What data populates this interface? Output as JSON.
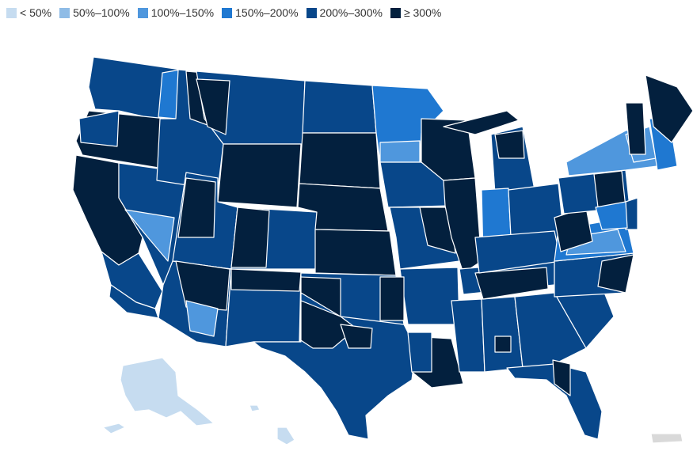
{
  "legend": [
    {
      "label": "< 50%",
      "color": "#c6dcf0"
    },
    {
      "label": "50%–100%",
      "color": "#8fbce6"
    },
    {
      "label": "100%–150%",
      "color": "#4f97dd"
    },
    {
      "label": "150%–200%",
      "color": "#1f78d1"
    },
    {
      "label": "200%–300%",
      "color": "#08478a"
    },
    {
      "label": "≥ 300%",
      "color": "#03203e"
    }
  ],
  "other_color": "#d9d9d9",
  "boundary_color": "#ffffff"
}
